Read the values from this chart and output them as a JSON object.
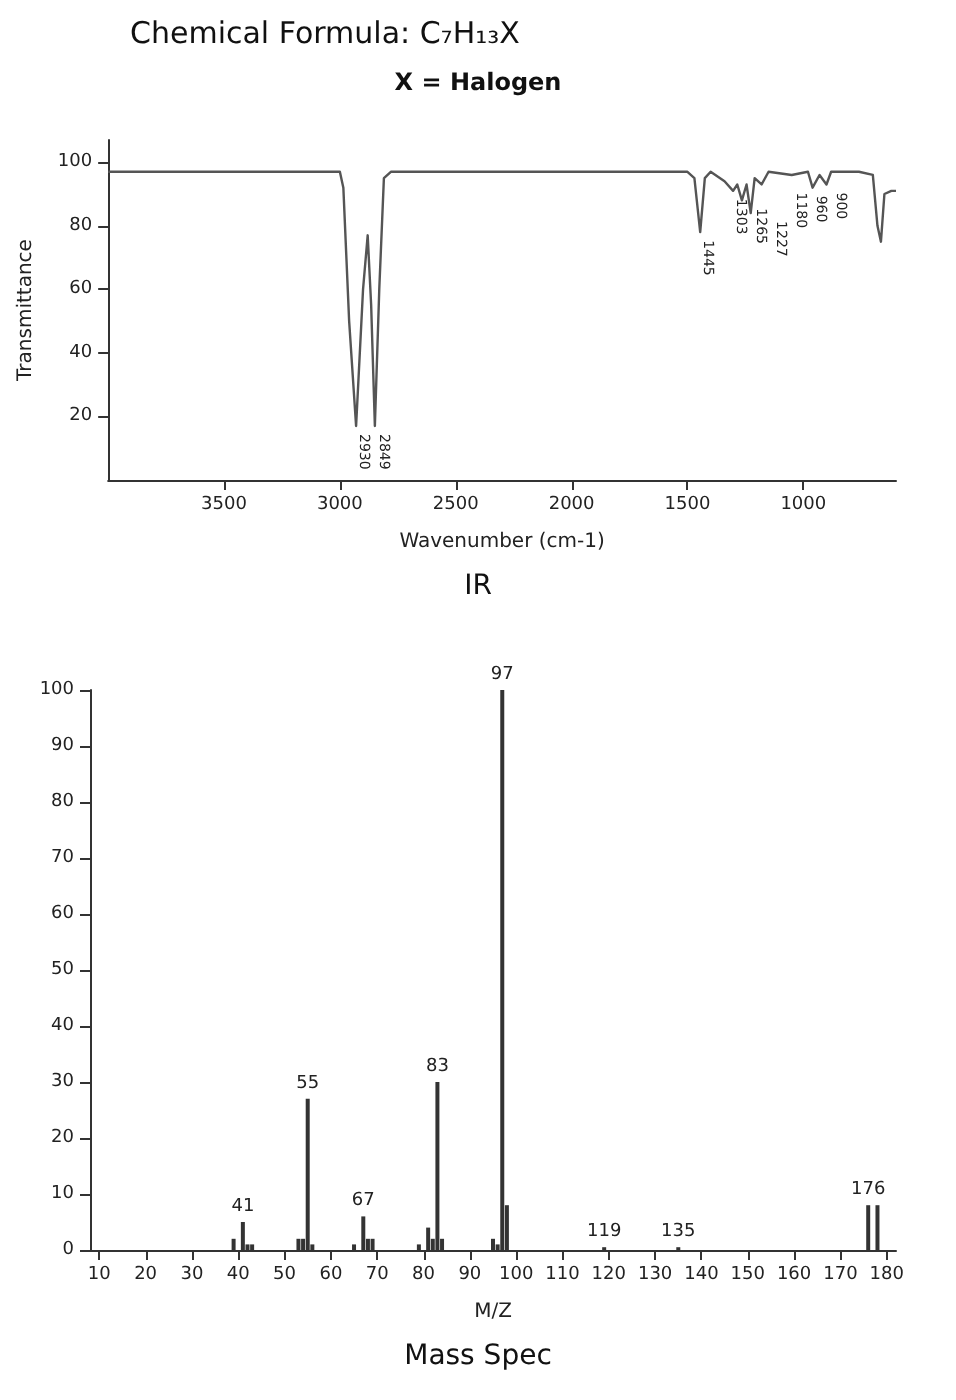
{
  "chart_data": [
    {
      "type": "line",
      "title": "Chemical Formula: C₇H₁₃X",
      "subtitle": "X = Halogen",
      "xlabel": "Wavenumber (cm-1)",
      "ylabel": "Transmittance",
      "x": [
        4000,
        3700,
        3000,
        2985,
        2960,
        2930,
        2900,
        2880,
        2865,
        2849,
        2830,
        2810,
        2780,
        2500,
        2000,
        1500,
        1470,
        1445,
        1425,
        1400,
        1340,
        1303,
        1285,
        1265,
        1245,
        1227,
        1210,
        1180,
        1150,
        1050,
        980,
        960,
        930,
        900,
        880,
        760,
        700,
        680,
        665,
        650,
        620,
        600
      ],
      "series": [
        {
          "color": "#555555",
          "values": [
            97,
            97,
            97,
            92,
            50,
            17,
            60,
            77,
            55,
            17,
            60,
            95,
            97,
            97,
            97,
            97,
            95,
            78,
            95,
            97,
            94,
            91,
            93,
            88,
            93,
            84,
            95,
            93,
            97,
            96,
            97,
            92,
            96,
            93,
            97,
            97,
            96,
            80,
            75,
            90,
            91,
            91
          ]
        }
      ],
      "xlim": [
        4000,
        600
      ],
      "xticks": [
        3500,
        3000,
        2500,
        2000,
        1500,
        1000
      ],
      "ylim": [
        0,
        107
      ],
      "yticks": [
        20,
        40,
        60,
        80,
        100
      ],
      "grid": false,
      "marker": "none",
      "line_style": "solid",
      "annotations": [
        {
          "text": "2930",
          "x": 2930,
          "y": 17
        },
        {
          "text": "2849",
          "x": 2849,
          "y": 17
        },
        {
          "text": "1445",
          "x": 1445,
          "y": 78
        },
        {
          "text": "1303",
          "x": 1303,
          "y": 91
        },
        {
          "text": "1265",
          "x": 1265,
          "y": 88
        },
        {
          "text": "1227",
          "x": 1227,
          "y": 84
        },
        {
          "text": "1180",
          "x": 1180,
          "y": 93
        },
        {
          "text": "960",
          "x": 960,
          "y": 92
        },
        {
          "text": "900",
          "x": 900,
          "y": 93
        },
        "IR"
      ]
    },
    {
      "type": "bar",
      "xlabel": "M/Z",
      "x": [
        39,
        41,
        42,
        43,
        53,
        54,
        55,
        56,
        65,
        67,
        68,
        69,
        79,
        81,
        82,
        83,
        84,
        95,
        96,
        97,
        98,
        119,
        135,
        176,
        178
      ],
      "series": [
        {
          "color": "#333333",
          "values": [
            2,
            5,
            1,
            1,
            2,
            2,
            27,
            1,
            1,
            6,
            2,
            2,
            1,
            4,
            2,
            30,
            2,
            2,
            1,
            100,
            8,
            0.5,
            0.5,
            8,
            8
          ]
        }
      ],
      "xlim": [
        8,
        182
      ],
      "xticks": [
        10,
        20,
        30,
        40,
        50,
        60,
        70,
        80,
        90,
        100,
        110,
        120,
        130,
        140,
        150,
        160,
        170,
        180
      ],
      "ylim": [
        0,
        100
      ],
      "yticks": [
        0,
        10,
        20,
        30,
        40,
        50,
        60,
        70,
        80,
        90,
        100
      ],
      "grid": false,
      "annotations": [
        {
          "text": "41",
          "x": 41,
          "y": 5
        },
        {
          "text": "55",
          "x": 55,
          "y": 27
        },
        {
          "text": "67",
          "x": 67,
          "y": 6
        },
        {
          "text": "83",
          "x": 83,
          "y": 30
        },
        {
          "text": "97",
          "x": 97,
          "y": 100
        },
        {
          "text": "119",
          "x": 119,
          "y": 0.5
        },
        {
          "text": "135",
          "x": 135,
          "y": 0.5
        },
        {
          "text": "176",
          "x": 176,
          "y": 8
        },
        "Mass Spec"
      ]
    }
  ]
}
